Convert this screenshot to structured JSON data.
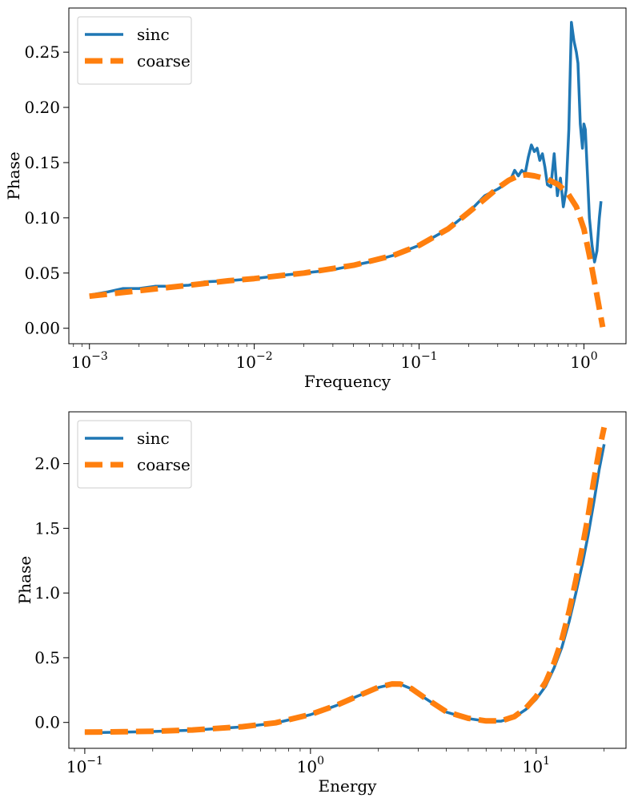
{
  "colors": {
    "sinc": "#1f77b4",
    "coarse": "#ff7f0e"
  },
  "chart_data": [
    {
      "type": "line",
      "xscale": "log",
      "xlim": [
        0.00075,
        1.8
      ],
      "ylim": [
        -0.014,
        0.29
      ],
      "xlabel": "Frequency",
      "ylabel": "Phase",
      "xticks": [
        {
          "value": 0.001,
          "base": "10",
          "exp": "−3"
        },
        {
          "value": 0.01,
          "base": "10",
          "exp": "−2"
        },
        {
          "value": 0.1,
          "base": "10",
          "exp": "−1"
        },
        {
          "value": 1,
          "base": "10",
          "exp": "0"
        }
      ],
      "yticks": [
        {
          "value": 0.0,
          "label": "0.00"
        },
        {
          "value": 0.05,
          "label": "0.05"
        },
        {
          "value": 0.1,
          "label": "0.10"
        },
        {
          "value": 0.15,
          "label": "0.15"
        },
        {
          "value": 0.2,
          "label": "0.20"
        },
        {
          "value": 0.25,
          "label": "0.25"
        }
      ],
      "legend": "top-left",
      "series": [
        {
          "name": "sinc",
          "style": "solid",
          "x": [
            0.001,
            0.0013,
            0.0016,
            0.002,
            0.0025,
            0.003,
            0.004,
            0.005,
            0.007,
            0.01,
            0.015,
            0.02,
            0.03,
            0.05,
            0.07,
            0.1,
            0.15,
            0.2,
            0.25,
            0.3,
            0.33,
            0.36,
            0.38,
            0.4,
            0.42,
            0.44,
            0.46,
            0.48,
            0.5,
            0.52,
            0.54,
            0.56,
            0.58,
            0.6,
            0.63,
            0.66,
            0.69,
            0.72,
            0.75,
            0.78,
            0.81,
            0.84,
            0.87,
            0.9,
            0.92,
            0.95,
            0.98,
            1.0,
            1.02,
            1.05,
            1.08,
            1.12,
            1.16,
            1.2,
            1.24,
            1.27
          ],
          "y": [
            0.03,
            0.033,
            0.036,
            0.036,
            0.038,
            0.038,
            0.039,
            0.042,
            0.043,
            0.045,
            0.048,
            0.05,
            0.053,
            0.06,
            0.066,
            0.075,
            0.09,
            0.105,
            0.12,
            0.126,
            0.13,
            0.135,
            0.143,
            0.138,
            0.143,
            0.14,
            0.155,
            0.166,
            0.16,
            0.163,
            0.152,
            0.158,
            0.146,
            0.13,
            0.128,
            0.158,
            0.12,
            0.136,
            0.11,
            0.125,
            0.18,
            0.277,
            0.26,
            0.25,
            0.24,
            0.185,
            0.163,
            0.185,
            0.18,
            0.14,
            0.1,
            0.075,
            0.06,
            0.07,
            0.1,
            0.115
          ]
        },
        {
          "name": "coarse",
          "style": "dashed",
          "x": [
            0.001,
            0.002,
            0.004,
            0.007,
            0.01,
            0.02,
            0.04,
            0.07,
            0.1,
            0.15,
            0.2,
            0.25,
            0.3,
            0.35,
            0.4,
            0.45,
            0.5,
            0.6,
            0.7,
            0.8,
            0.9,
            1.0,
            1.1,
            1.2,
            1.3
          ],
          "y": [
            0.029,
            0.034,
            0.039,
            0.043,
            0.045,
            0.05,
            0.057,
            0.066,
            0.075,
            0.09,
            0.105,
            0.117,
            0.127,
            0.134,
            0.138,
            0.139,
            0.138,
            0.135,
            0.13,
            0.122,
            0.11,
            0.09,
            0.06,
            0.03,
            0.001
          ]
        }
      ]
    },
    {
      "type": "line",
      "xscale": "log",
      "xlim": [
        0.085,
        25
      ],
      "ylim": [
        -0.2,
        2.4
      ],
      "xlabel": "Energy",
      "ylabel": "Phase",
      "xticks": [
        {
          "value": 0.1,
          "base": "10",
          "exp": "−1"
        },
        {
          "value": 1,
          "base": "10",
          "exp": "0"
        },
        {
          "value": 10,
          "base": "10",
          "exp": "1"
        }
      ],
      "yticks": [
        {
          "value": 0.0,
          "label": "0.0"
        },
        {
          "value": 0.5,
          "label": "0.5"
        },
        {
          "value": 1.0,
          "label": "1.0"
        },
        {
          "value": 1.5,
          "label": "1.5"
        },
        {
          "value": 2.0,
          "label": "2.0"
        }
      ],
      "legend": "top-left",
      "series": [
        {
          "name": "sinc",
          "style": "solid",
          "x": [
            0.1,
            0.15,
            0.2,
            0.3,
            0.5,
            0.7,
            1.0,
            1.3,
            1.6,
            2.0,
            2.3,
            2.5,
            2.8,
            3.2,
            4.0,
            5.0,
            6.0,
            7.0,
            8.0,
            9.0,
            10.0,
            11.0,
            12.0,
            13.0,
            14.0,
            15.0,
            16.0,
            17.0,
            18.0,
            19.0,
            20.0
          ],
          "y": [
            -0.08,
            -0.075,
            -0.07,
            -0.06,
            -0.035,
            -0.005,
            0.06,
            0.13,
            0.2,
            0.27,
            0.295,
            0.295,
            0.26,
            0.19,
            0.08,
            0.03,
            0.01,
            0.01,
            0.04,
            0.1,
            0.18,
            0.28,
            0.42,
            0.58,
            0.78,
            1.0,
            1.22,
            1.45,
            1.7,
            1.95,
            2.15
          ]
        },
        {
          "name": "coarse",
          "style": "dashed",
          "x": [
            0.1,
            0.15,
            0.2,
            0.3,
            0.5,
            0.7,
            1.0,
            1.3,
            1.6,
            2.0,
            2.3,
            2.5,
            2.8,
            3.2,
            4.0,
            5.0,
            6.0,
            7.0,
            8.0,
            9.0,
            10.0,
            11.0,
            12.0,
            13.0,
            14.0,
            15.0,
            16.0,
            17.0,
            18.0,
            19.0,
            20.0
          ],
          "y": [
            -0.075,
            -0.072,
            -0.068,
            -0.058,
            -0.033,
            -0.003,
            0.062,
            0.132,
            0.2,
            0.272,
            0.298,
            0.297,
            0.262,
            0.192,
            0.082,
            0.032,
            0.012,
            0.012,
            0.045,
            0.11,
            0.2,
            0.31,
            0.46,
            0.64,
            0.86,
            1.1,
            1.35,
            1.6,
            1.87,
            2.1,
            2.28
          ]
        }
      ]
    }
  ]
}
